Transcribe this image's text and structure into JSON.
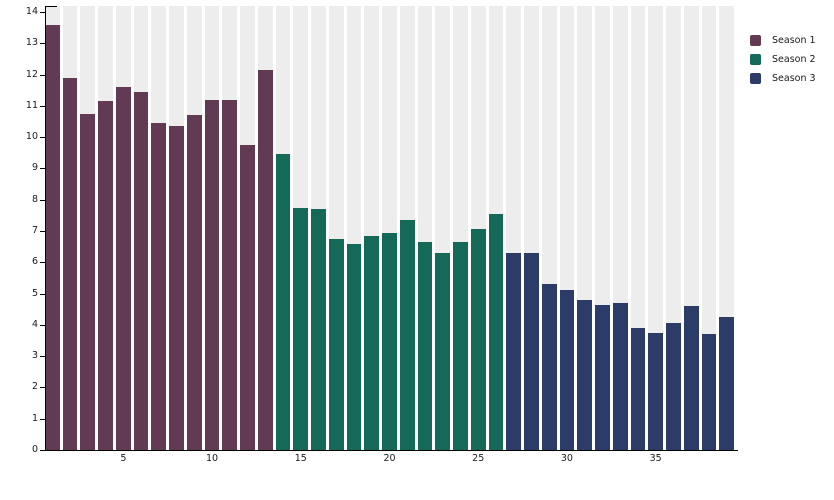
{
  "chart_data": {
    "type": "bar",
    "title": "",
    "xlabel": "",
    "ylabel": "",
    "x_range": [
      1,
      39
    ],
    "ylim": [
      0,
      14
    ],
    "yticks": [
      0,
      1,
      2,
      3,
      4,
      5,
      6,
      7,
      8,
      9,
      10,
      11,
      12,
      13,
      14
    ],
    "xticks": [
      5,
      10,
      15,
      20,
      25,
      30,
      35
    ],
    "grid": false,
    "background_bands": true,
    "band_color": "#ededed",
    "legend_position": "top-right-outside",
    "series": [
      {
        "name": "Season 1",
        "color": "#633a54",
        "x_start": 1,
        "values": [
          13.6,
          11.9,
          10.75,
          11.15,
          11.6,
          11.45,
          10.45,
          10.35,
          10.7,
          11.2,
          11.2,
          9.75,
          12.15
        ]
      },
      {
        "name": "Season 2",
        "color": "#156958",
        "x_start": 14,
        "values": [
          9.45,
          7.75,
          7.7,
          6.75,
          6.6,
          6.85,
          6.95,
          7.35,
          6.65,
          6.3,
          6.65,
          7.05,
          7.55
        ]
      },
      {
        "name": "Season 3",
        "color": "#2b3c68",
        "x_start": 27,
        "values": [
          6.3,
          6.3,
          5.3,
          5.1,
          4.8,
          4.65,
          4.7,
          3.9,
          3.75,
          4.05,
          4.6,
          3.7,
          4.25
        ]
      }
    ]
  },
  "layout_colors": {
    "axis": "#000000",
    "tick_text": "#1a1a1a",
    "background": "#ffffff"
  }
}
